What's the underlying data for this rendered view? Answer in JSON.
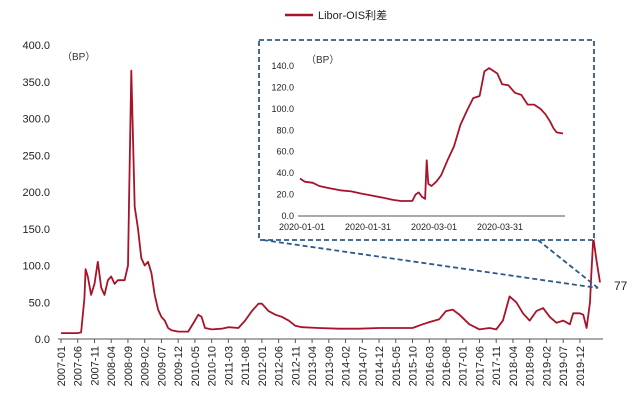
{
  "chart_data": [
    {
      "type": "line",
      "unit_label": "（BP）",
      "legend": [
        "Libor-OIS利差"
      ],
      "series_color": "#a8132a",
      "ylim": [
        0,
        400
      ],
      "yticks": [
        "0.0",
        "50.0",
        "100.0",
        "150.0",
        "200.0",
        "250.0",
        "300.0",
        "350.0",
        "400.0"
      ],
      "xticks": [
        "2007-01",
        "2007-06",
        "2007-11",
        "2008-04",
        "2008-09",
        "2009-02",
        "2009-07",
        "2009-12",
        "2010-05",
        "2010-10",
        "2011-03",
        "2011-08",
        "2012-01",
        "2012-06",
        "2012-11",
        "2013-04",
        "2013-09",
        "2014-02",
        "2014-07",
        "2014-12",
        "2015-05",
        "2015-10",
        "2016-03",
        "2016-08",
        "2017-01",
        "2017-06",
        "2017-11",
        "2018-04",
        "2018-09",
        "2019-02",
        "2019-07",
        "2019-12"
      ],
      "end_label": "77",
      "series": [
        {
          "name": "Libor-OIS利差",
          "points": [
            [
              "2007-01",
              8
            ],
            [
              "2007-06",
              8
            ],
            [
              "2007-07",
              9
            ],
            [
              "2007-08",
              55
            ],
            [
              "2007-08",
              95
            ],
            [
              "2007-09",
              85
            ],
            [
              "2007-10",
              60
            ],
            [
              "2007-11",
              75
            ],
            [
              "2007-12",
              105
            ],
            [
              "2008-01",
              70
            ],
            [
              "2008-02",
              60
            ],
            [
              "2008-03",
              80
            ],
            [
              "2008-04",
              85
            ],
            [
              "2008-05",
              75
            ],
            [
              "2008-06",
              80
            ],
            [
              "2008-07",
              80
            ],
            [
              "2008-08",
              80
            ],
            [
              "2008-09",
              100
            ],
            [
              "2008-09",
              200
            ],
            [
              "2008-10",
              365
            ],
            [
              "2008-10",
              300
            ],
            [
              "2008-11",
              180
            ],
            [
              "2008-12",
              150
            ],
            [
              "2009-01",
              110
            ],
            [
              "2009-02",
              100
            ],
            [
              "2009-03",
              105
            ],
            [
              "2009-04",
              90
            ],
            [
              "2009-05",
              60
            ],
            [
              "2009-06",
              40
            ],
            [
              "2009-07",
              30
            ],
            [
              "2009-08",
              25
            ],
            [
              "2009-09",
              15
            ],
            [
              "2009-10",
              12
            ],
            [
              "2009-12",
              10
            ],
            [
              "2010-03",
              10
            ],
            [
              "2010-05",
              25
            ],
            [
              "2010-06",
              33
            ],
            [
              "2010-07",
              30
            ],
            [
              "2010-08",
              15
            ],
            [
              "2010-10",
              13
            ],
            [
              "2011-01",
              14
            ],
            [
              "2011-03",
              16
            ],
            [
              "2011-06",
              15
            ],
            [
              "2011-08",
              25
            ],
            [
              "2011-10",
              38
            ],
            [
              "2011-12",
              48
            ],
            [
              "2012-01",
              48
            ],
            [
              "2012-03",
              38
            ],
            [
              "2012-05",
              33
            ],
            [
              "2012-07",
              30
            ],
            [
              "2012-09",
              25
            ],
            [
              "2012-11",
              18
            ],
            [
              "2013-01",
              16
            ],
            [
              "2013-06",
              15
            ],
            [
              "2013-12",
              14
            ],
            [
              "2014-06",
              14
            ],
            [
              "2014-12",
              15
            ],
            [
              "2015-05",
              15
            ],
            [
              "2015-10",
              15
            ],
            [
              "2016-01",
              20
            ],
            [
              "2016-03",
              23
            ],
            [
              "2016-06",
              27
            ],
            [
              "2016-08",
              38
            ],
            [
              "2016-10",
              40
            ],
            [
              "2016-12",
              33
            ],
            [
              "2017-03",
              20
            ],
            [
              "2017-06",
              13
            ],
            [
              "2017-09",
              15
            ],
            [
              "2017-11",
              13
            ],
            [
              "2018-01",
              25
            ],
            [
              "2018-03",
              58
            ],
            [
              "2018-05",
              50
            ],
            [
              "2018-07",
              35
            ],
            [
              "2018-09",
              25
            ],
            [
              "2018-11",
              38
            ],
            [
              "2019-01",
              42
            ],
            [
              "2019-03",
              30
            ],
            [
              "2019-05",
              22
            ],
            [
              "2019-07",
              25
            ],
            [
              "2019-09",
              20
            ],
            [
              "2019-10",
              35
            ],
            [
              "2019-12",
              35
            ],
            [
              "2020-01",
              33
            ],
            [
              "2020-02",
              15
            ],
            [
              "2020-03",
              50
            ],
            [
              "2020-03",
              85
            ],
            [
              "2020-04",
              138
            ],
            [
              "2020-05",
              105
            ],
            [
              "2020-06",
              77
            ]
          ]
        }
      ]
    },
    {
      "type": "line",
      "unit_label": "（BP）",
      "ylim": [
        0,
        140
      ],
      "yticks": [
        "0.0",
        "20.0",
        "40.0",
        "60.0",
        "80.0",
        "100.0",
        "120.0",
        "140.0"
      ],
      "xticks": [
        "2020-01-01",
        "2020-01-31",
        "2020-03-01",
        "2020-03-31"
      ],
      "series_color": "#a8132a",
      "series": [
        {
          "name": "Libor-OIS利差",
          "points": [
            [
              0,
              35
            ],
            [
              3,
              32
            ],
            [
              8,
              31
            ],
            [
              12,
              28
            ],
            [
              18,
              26
            ],
            [
              25,
              24
            ],
            [
              32,
              23
            ],
            [
              38,
              21
            ],
            [
              45,
              19
            ],
            [
              52,
              17
            ],
            [
              58,
              15
            ],
            [
              63,
              14
            ],
            [
              67,
              14
            ],
            [
              70,
              14
            ],
            [
              72,
              20
            ],
            [
              74,
              22
            ],
            [
              76,
              18
            ],
            [
              78,
              16
            ],
            [
              79,
              52
            ],
            [
              80,
              30
            ],
            [
              82,
              28
            ],
            [
              85,
              32
            ],
            [
              88,
              38
            ],
            [
              92,
              52
            ],
            [
              96,
              65
            ],
            [
              100,
              85
            ],
            [
              104,
              98
            ],
            [
              108,
              110
            ],
            [
              112,
              112
            ],
            [
              115,
              135
            ],
            [
              118,
              138
            ],
            [
              120,
              136
            ],
            [
              123,
              133
            ],
            [
              126,
              123
            ],
            [
              130,
              122
            ],
            [
              134,
              115
            ],
            [
              138,
              113
            ],
            [
              142,
              104
            ],
            [
              146,
              104
            ],
            [
              150,
              100
            ],
            [
              153,
              95
            ],
            [
              156,
              88
            ],
            [
              158,
              82
            ],
            [
              160,
              78
            ],
            [
              164,
              77
            ]
          ]
        }
      ]
    }
  ]
}
